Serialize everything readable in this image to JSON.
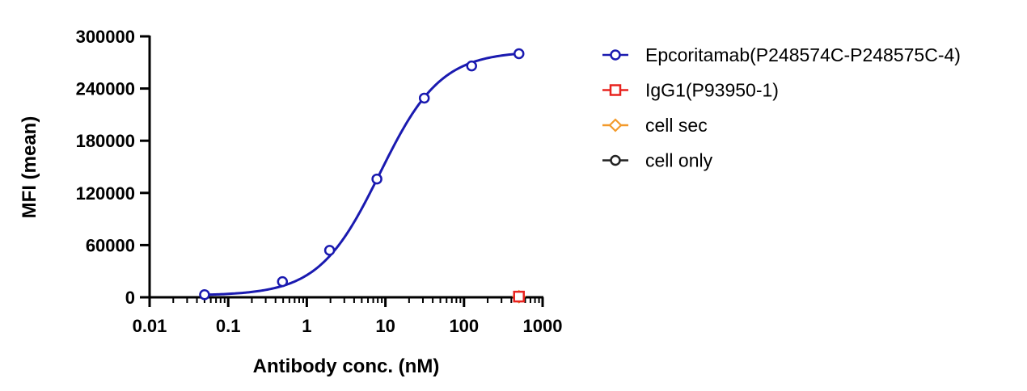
{
  "chart_data": {
    "type": "scatter",
    "xlabel": "Antibody conc. (nM)",
    "ylabel": "MFI (mean)",
    "xscale": "log",
    "xlim": [
      0.01,
      1000
    ],
    "ylim": [
      0,
      300000
    ],
    "x_ticks": [
      0.01,
      0.1,
      1,
      10,
      100,
      1000
    ],
    "x_tick_labels": [
      "0.01",
      "0.1",
      "1",
      "10",
      "100",
      "1000"
    ],
    "y_ticks": [
      0,
      60000,
      120000,
      180000,
      240000,
      300000
    ],
    "y_tick_labels": [
      "0",
      "60000",
      "120000",
      "180000",
      "240000",
      "300000"
    ],
    "grid": false,
    "legend_position": "right",
    "series": [
      {
        "name": "Epcoritamab(P248574C-P248575C-4)",
        "color": "#1a1ab0",
        "marker": "circle",
        "fit": "sigmoidal",
        "x": [
          0.05,
          0.49,
          1.95,
          7.8,
          31.25,
          125,
          500
        ],
        "y": [
          3000,
          18000,
          54000,
          136000,
          229000,
          266000,
          280000
        ]
      },
      {
        "name": "IgG1(P93950-1)",
        "color": "#e8231f",
        "marker": "square",
        "x": [
          500
        ],
        "y": [
          800
        ]
      },
      {
        "name": "cell sec",
        "color": "#f39a2b",
        "marker": "diamond",
        "x": [
          500
        ],
        "y": [
          700
        ]
      },
      {
        "name": "cell only",
        "color": "#222222",
        "marker": "circle",
        "x": [
          500
        ],
        "y": [
          600
        ]
      }
    ]
  }
}
